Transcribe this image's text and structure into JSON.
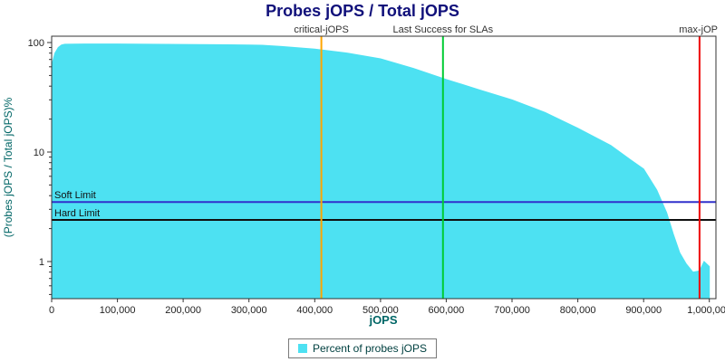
{
  "colors": {
    "title": "#10107a",
    "area": "#4de1f2",
    "axis_title": "#006666",
    "tick_label": "#222222",
    "plot_border": "#333333",
    "marker_label": "#333333",
    "limit_label": "#111111"
  },
  "legend": {
    "label": "Percent of probes jOPS"
  },
  "chart_data": {
    "type": "area",
    "title": "Probes jOPS / Total jOPS",
    "xlabel": "jOPS",
    "ylabel": "(Probes jOPS / Total jOPS)%",
    "y_scale": "log",
    "grid": false,
    "legend_position": "bottom",
    "xlim": [
      0,
      1010000
    ],
    "ylim": [
      0.46,
      114
    ],
    "x_ticks": [
      0,
      100000,
      200000,
      300000,
      400000,
      500000,
      600000,
      700000,
      800000,
      900000,
      1000000
    ],
    "x_ticklabels": [
      "0",
      "100,000",
      "200,000",
      "300,000",
      "400,000",
      "500,000",
      "600,000",
      "700,000",
      "800,000",
      "900,000",
      "1,000,000"
    ],
    "y_ticks": [
      1,
      10,
      100
    ],
    "y_ticklabels": [
      "1",
      "10",
      "100"
    ],
    "series": [
      {
        "name": "Percent of probes jOPS",
        "color": "#4de1f2",
        "x": [
          0,
          5000,
          10000,
          15000,
          20000,
          50000,
          100000,
          150000,
          200000,
          250000,
          300000,
          320000,
          350000,
          400000,
          450000,
          500000,
          550000,
          600000,
          650000,
          700000,
          750000,
          800000,
          850000,
          880000,
          900000,
          920000,
          935000,
          945000,
          955000,
          965000,
          975000,
          985000,
          992000,
          1000000
        ],
        "y": [
          62,
          80,
          90,
          95,
          96.5,
          97,
          97,
          96.5,
          96,
          95.5,
          95,
          94.5,
          92,
          87,
          80,
          71,
          58,
          46,
          37,
          30,
          23,
          16.5,
          11.5,
          8.5,
          7,
          4.5,
          2.8,
          1.8,
          1.2,
          0.95,
          0.8,
          0.82,
          1.0,
          0.9
        ]
      }
    ],
    "markers": [
      {
        "label": "critical-jOPS",
        "x": 410000,
        "color": "#ffa500",
        "align": "middle"
      },
      {
        "label": "Last Success for SLAs",
        "x": 595000,
        "color": "#00cc33",
        "align": "middle"
      },
      {
        "label": "max-jOP",
        "x": 985000,
        "color": "#ee0000",
        "align": "end"
      }
    ],
    "limits": [
      {
        "label": "Soft Limit",
        "value": 3.5,
        "color": "#3030cc"
      },
      {
        "label": "Hard Limit",
        "value": 2.4,
        "color": "#101010"
      }
    ]
  }
}
